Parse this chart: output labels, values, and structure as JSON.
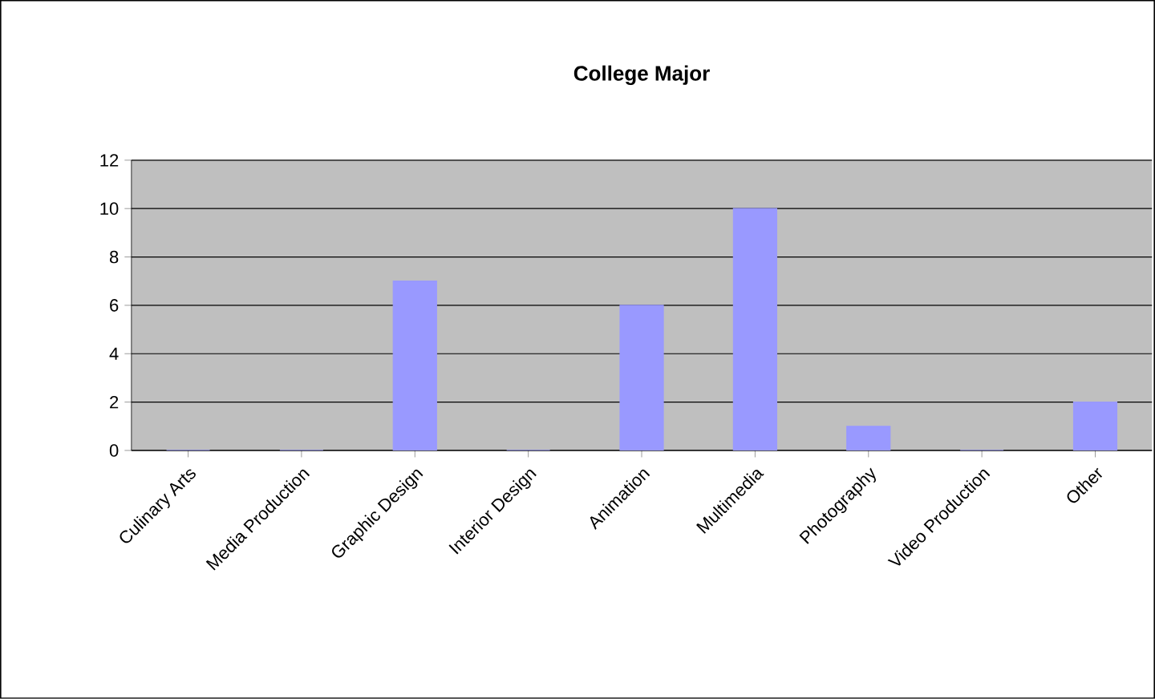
{
  "chart_data": {
    "type": "bar",
    "title": "College Major",
    "categories": [
      "Culinary Arts",
      "Media Production",
      "Graphic Design",
      "Interior Design",
      "Animation",
      "Multimedia",
      "Photography",
      "Video Production",
      "Other"
    ],
    "values": [
      0,
      0,
      7,
      0,
      6,
      10,
      1,
      0,
      2
    ],
    "color": "#9999ff",
    "ylim": [
      0,
      12
    ],
    "yticks": [
      0,
      2,
      4,
      6,
      8,
      10,
      12
    ],
    "grid": "y"
  }
}
